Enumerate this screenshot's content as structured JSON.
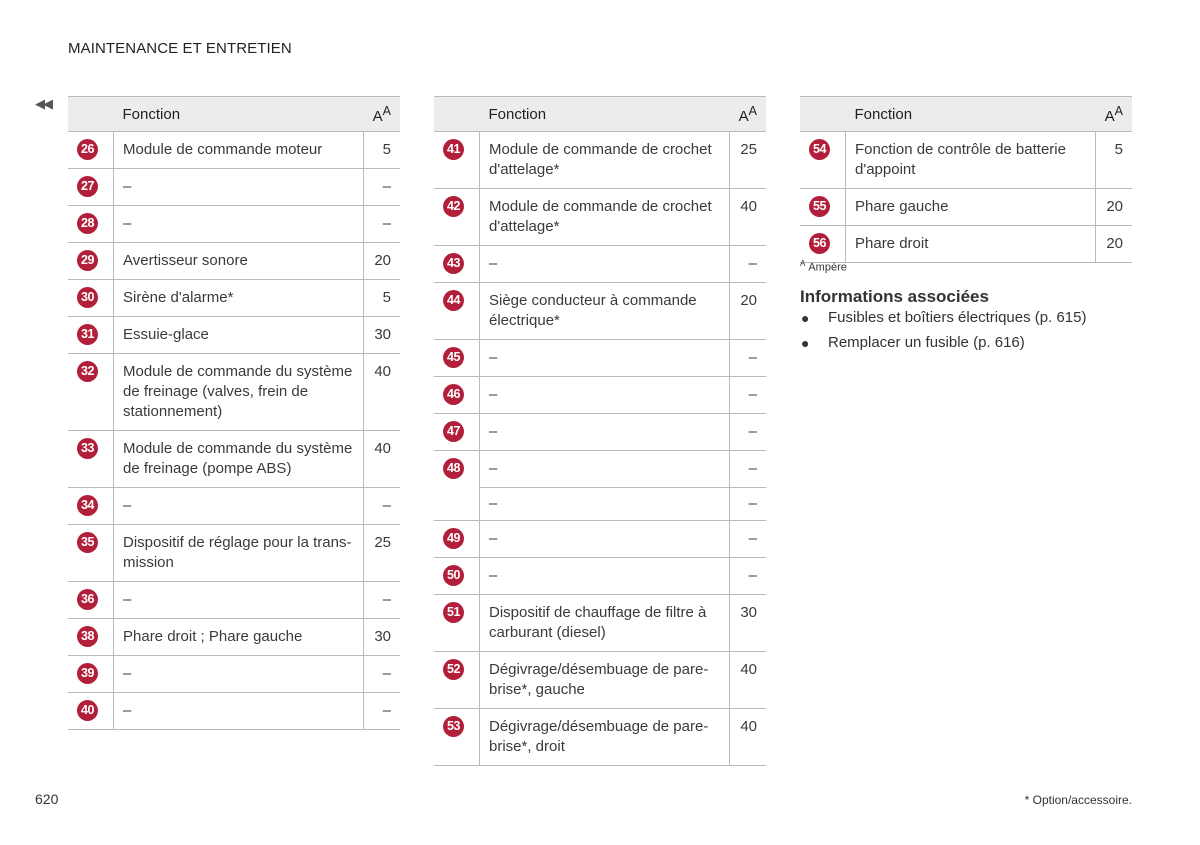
{
  "header": {
    "title": "MAINTENANCE ET ENTRETIEN",
    "continued": "◀◀"
  },
  "columns_header": {
    "function": "Fonction",
    "amp": "A",
    "amp_sup": "A"
  },
  "tables": [
    {
      "rows": [
        {
          "num": "26",
          "fn": "Module de commande moteur",
          "amp": "5"
        },
        {
          "num": "27",
          "fn": "–",
          "amp": "–"
        },
        {
          "num": "28",
          "fn": "–",
          "amp": "–"
        },
        {
          "num": "29",
          "fn": "Avertisseur sonore",
          "amp": "20"
        },
        {
          "num": "30",
          "fn": "Sirène d'alarme*",
          "amp": "5"
        },
        {
          "num": "31",
          "fn": "Essuie-glace",
          "amp": "30"
        },
        {
          "num": "32",
          "fn": "Module de commande du système de freinage (valves, frein de station­nement)",
          "amp": "40"
        },
        {
          "num": "33",
          "fn": "Module de commande du système de freinage (pompe ABS)",
          "amp": "40"
        },
        {
          "num": "34",
          "fn": "–",
          "amp": "–"
        },
        {
          "num": "35",
          "fn": "Dispositif de réglage pour la trans­mission",
          "amp": "25"
        },
        {
          "num": "36",
          "fn": "–",
          "amp": "–"
        },
        {
          "num": "38",
          "fn": "Phare droit ; Phare gauche",
          "amp": "30"
        },
        {
          "num": "39",
          "fn": "–",
          "amp": "–"
        },
        {
          "num": "40",
          "fn": "–",
          "amp": "–"
        }
      ]
    },
    {
      "rows": [
        {
          "num": "41",
          "fn": "Module de commande de crochet d'attelage*",
          "amp": "25"
        },
        {
          "num": "42",
          "fn": "Module de commande de crochet d'attelage*",
          "amp": "40"
        },
        {
          "num": "43",
          "fn": "–",
          "amp": "–"
        },
        {
          "num": "44",
          "fn": "Siège conducteur à commande électrique*",
          "amp": "20"
        },
        {
          "num": "45",
          "fn": "–",
          "amp": "–"
        },
        {
          "num": "46",
          "fn": "–",
          "amp": "–"
        },
        {
          "num": "47",
          "fn": "–",
          "amp": "–"
        },
        {
          "num": "48",
          "fn": "–",
          "amp": "–",
          "split": true
        },
        {
          "num": "",
          "fn": "–",
          "amp": "–",
          "sub": true
        },
        {
          "num": "49",
          "fn": "–",
          "amp": "–"
        },
        {
          "num": "50",
          "fn": "–",
          "amp": "–"
        },
        {
          "num": "51",
          "fn": "Dispositif de chauffage de filtre à carburant (diesel)",
          "amp": "30"
        },
        {
          "num": "52",
          "fn": "Dégivrage/désembuage de pare-brise*, gauche",
          "amp": "40"
        },
        {
          "num": "53",
          "fn": "Dégivrage/désembuage de pare-brise*, droit",
          "amp": "40"
        }
      ]
    },
    {
      "rows": [
        {
          "num": "54",
          "fn": "Fonction de contrôle de batterie d'appoint",
          "amp": "5"
        },
        {
          "num": "55",
          "fn": "Phare gauche",
          "amp": "20"
        },
        {
          "num": "56",
          "fn": "Phare droit",
          "amp": "20"
        }
      ]
    }
  ],
  "footnote": {
    "mark": "A",
    "text": "Ampère"
  },
  "related": {
    "title": "Informations associées",
    "items": [
      "Fusibles et boîtiers électriques (p. 615)",
      "Remplacer un fusible (p. 616)"
    ]
  },
  "page_number": "620",
  "option_note": "* Option/accessoire.",
  "colors": {
    "badge": "#b21f3a",
    "header_bg": "#ececec",
    "rule": "#b9b9b9"
  }
}
